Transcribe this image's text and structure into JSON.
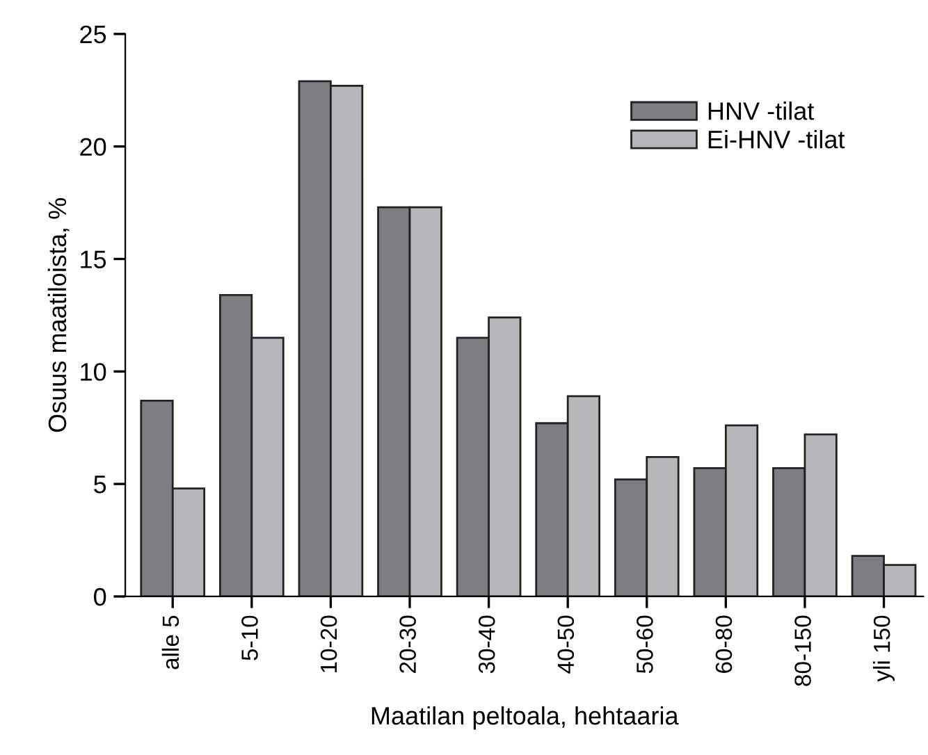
{
  "chart_data": {
    "type": "bar",
    "xlabel": "Maatilan peltoala, hehtaaria",
    "ylabel": "Osuus maatiloista, %",
    "categories": [
      "alle 5",
      "5-10",
      "10-20",
      "20-30",
      "30-40",
      "40-50",
      "50-60",
      "60-80",
      "80-150",
      "yli 150"
    ],
    "series": [
      {
        "name": "HNV -tilat",
        "color": "#7d7e83",
        "values": [
          8.7,
          13.4,
          22.9,
          17.3,
          11.5,
          7.7,
          5.2,
          5.7,
          5.7,
          1.8
        ]
      },
      {
        "name": "Ei-HNV -tilat",
        "color": "#b6b7bb",
        "values": [
          4.8,
          11.5,
          22.7,
          17.3,
          12.4,
          8.9,
          6.2,
          7.6,
          7.2,
          1.4
        ]
      }
    ],
    "ylim": [
      0,
      25
    ],
    "yticks": [
      0,
      5,
      10,
      15,
      20,
      25
    ],
    "grid": false,
    "legend": "top right"
  }
}
